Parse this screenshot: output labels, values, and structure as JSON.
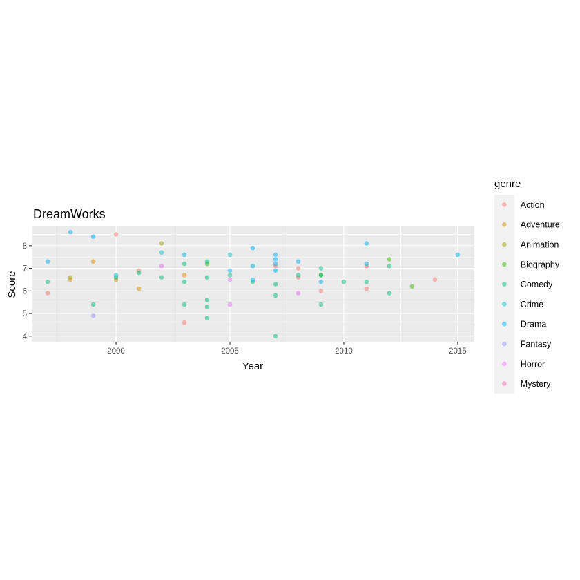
{
  "chart_data": {
    "type": "scatter",
    "title": "DreamWorks",
    "xlabel": "Year",
    "ylabel": "Score",
    "xlim": [
      1996.3,
      2015.7
    ],
    "ylim": [
      3.75,
      8.85
    ],
    "xticks": [
      2000,
      2005,
      2010,
      2015
    ],
    "yticks": [
      4,
      5,
      6,
      7,
      8
    ],
    "grid": true,
    "legend": {
      "title": "genre",
      "position": "right"
    },
    "colors": {
      "Action": "#F8766D",
      "Adventure": "#D89000",
      "Animation": "#A3A500",
      "Biography": "#39B600",
      "Comedy": "#00BF7D",
      "Crime": "#00BFC4",
      "Drama": "#00B0F6",
      "Fantasy": "#9590FF",
      "Horror": "#E76BF3",
      "Mystery": "#FF62BC"
    },
    "series": [
      {
        "name": "Action",
        "points": [
          [
            1997,
            5.9
          ],
          [
            2000,
            8.5
          ],
          [
            2001,
            6.9
          ],
          [
            2003,
            4.6
          ],
          [
            2007,
            7.1
          ],
          [
            2008,
            7.0
          ],
          [
            2008,
            6.6
          ],
          [
            2009,
            6.0
          ],
          [
            2011,
            7.1
          ],
          [
            2011,
            6.1
          ],
          [
            2014,
            6.5
          ]
        ]
      },
      {
        "name": "Adventure",
        "points": [
          [
            1998,
            6.5
          ],
          [
            1999,
            7.3
          ],
          [
            2000,
            6.5
          ],
          [
            2001,
            6.1
          ],
          [
            2003,
            6.7
          ]
        ]
      },
      {
        "name": "Animation",
        "points": [
          [
            1998,
            6.6
          ],
          [
            2002,
            8.1
          ]
        ]
      },
      {
        "name": "Biography",
        "points": [
          [
            2004,
            7.2
          ],
          [
            2009,
            6.7
          ],
          [
            2012,
            7.4
          ],
          [
            2013,
            6.2
          ]
        ]
      },
      {
        "name": "Comedy",
        "points": [
          [
            1997,
            6.4
          ],
          [
            1999,
            5.4
          ],
          [
            2000,
            6.6
          ],
          [
            2001,
            6.8
          ],
          [
            2002,
            6.6
          ],
          [
            2003,
            7.2
          ],
          [
            2003,
            6.4
          ],
          [
            2003,
            5.4
          ],
          [
            2004,
            7.3
          ],
          [
            2004,
            6.6
          ],
          [
            2004,
            5.6
          ],
          [
            2004,
            5.3
          ],
          [
            2004,
            4.8
          ],
          [
            2005,
            6.7
          ],
          [
            2006,
            6.4
          ],
          [
            2007,
            6.3
          ],
          [
            2007,
            5.8
          ],
          [
            2007,
            4.0
          ],
          [
            2008,
            6.7
          ],
          [
            2009,
            7.0
          ],
          [
            2009,
            6.7
          ],
          [
            2009,
            5.4
          ],
          [
            2010,
            6.4
          ],
          [
            2011,
            6.4
          ],
          [
            2012,
            7.1
          ],
          [
            2012,
            5.9
          ]
        ]
      },
      {
        "name": "Crime",
        "points": [
          [
            2000,
            6.7
          ],
          [
            2002,
            7.7
          ],
          [
            2005,
            7.6
          ]
        ]
      },
      {
        "name": "Drama",
        "points": [
          [
            1997,
            7.3
          ],
          [
            1998,
            8.6
          ],
          [
            1999,
            8.4
          ],
          [
            2003,
            7.6
          ],
          [
            2005,
            6.9
          ],
          [
            2006,
            7.9
          ],
          [
            2006,
            7.1
          ],
          [
            2006,
            6.5
          ],
          [
            2007,
            7.6
          ],
          [
            2007,
            7.4
          ],
          [
            2007,
            7.2
          ],
          [
            2007,
            6.9
          ],
          [
            2008,
            7.3
          ],
          [
            2009,
            6.4
          ],
          [
            2011,
            8.1
          ],
          [
            2011,
            7.2
          ],
          [
            2015,
            7.6
          ]
        ]
      },
      {
        "name": "Fantasy",
        "points": [
          [
            1999,
            4.9
          ]
        ]
      },
      {
        "name": "Horror",
        "points": [
          [
            2002,
            7.1
          ],
          [
            2005,
            6.5
          ],
          [
            2005,
            5.4
          ],
          [
            2008,
            5.9
          ]
        ]
      },
      {
        "name": "Mystery",
        "points": []
      }
    ]
  }
}
